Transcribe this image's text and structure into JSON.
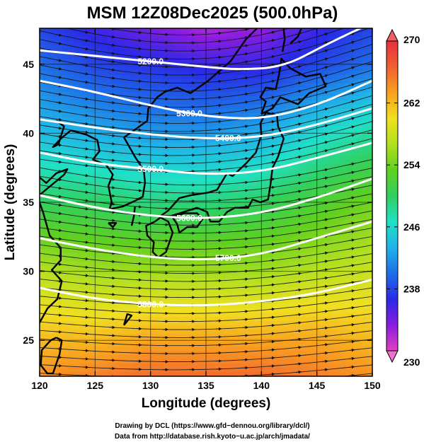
{
  "chart_data": {
    "type": "heatmap",
    "title": "MSM 12Z08Dec2025 (500.0hPa)",
    "xlabel": "Longitude (degrees)",
    "ylabel": "Latitude  (degrees)",
    "xlim": [
      120,
      150
    ],
    "ylim": [
      22.4,
      47.6
    ],
    "x_ticks": [
      120,
      125,
      130,
      135,
      140,
      145,
      150
    ],
    "y_ticks": [
      25,
      30,
      35,
      40,
      45
    ],
    "colorbar": {
      "min": 230,
      "max": 270,
      "ticks": [
        230,
        238,
        246,
        254,
        262,
        270
      ],
      "colors": [
        "#e040c0",
        "#8a1ce0",
        "#2a2ae6",
        "#1e6ee8",
        "#20b4e8",
        "#20e0c8",
        "#30d060",
        "#60d020",
        "#b0e020",
        "#f0e020",
        "#f8a020",
        "#f06030",
        "#e83040"
      ]
    },
    "temperature_field": {
      "lon": [
        120,
        125,
        130,
        135,
        140,
        145,
        150
      ],
      "lat": [
        47.6,
        45,
        40,
        35,
        30,
        25,
        22.4
      ],
      "values": [
        [
          238,
          236,
          234,
          232,
          233,
          236,
          238
        ],
        [
          240,
          238,
          237,
          236,
          236,
          238,
          240
        ],
        [
          244,
          243,
          242,
          242,
          243,
          246,
          248
        ],
        [
          250,
          250,
          249,
          249,
          250,
          252,
          254
        ],
        [
          257,
          256,
          256,
          256,
          256,
          257,
          258
        ],
        [
          262,
          262,
          263,
          263,
          263,
          263,
          262
        ],
        [
          264,
          265,
          266,
          266,
          266,
          265,
          264
        ]
      ]
    },
    "contours": [
      {
        "label": "5200.0",
        "lon": [
          120,
          125,
          130,
          135,
          138,
          142,
          146,
          150
        ],
        "lat": [
          46.0,
          45.6,
          45.2,
          44.8,
          44.6,
          44.8,
          46.5,
          48.0
        ]
      },
      {
        "label": "5300.0",
        "lon": [
          120,
          125,
          130,
          135,
          140,
          145,
          150
        ],
        "lat": [
          43.8,
          43.0,
          42.0,
          41.2,
          41.0,
          42.0,
          43.8
        ]
      },
      {
        "label": "5400.0",
        "lon": [
          120,
          125,
          130,
          135,
          140,
          145,
          150
        ],
        "lat": [
          41.0,
          40.4,
          39.9,
          39.6,
          39.7,
          40.6,
          41.8
        ]
      },
      {
        "label": "5500.0",
        "lon": [
          120,
          125,
          130,
          135,
          140,
          145,
          150
        ],
        "lat": [
          38.6,
          37.8,
          37.4,
          37.0,
          37.2,
          38.2,
          39.3
        ]
      },
      {
        "label": "5600.0",
        "lon": [
          120,
          125,
          130,
          135,
          140,
          145,
          150
        ],
        "lat": [
          35.5,
          34.6,
          34.0,
          33.8,
          34.2,
          35.3,
          36.7
        ]
      },
      {
        "label": "5700.0",
        "lon": [
          120,
          125,
          130,
          135,
          140,
          145,
          150
        ],
        "lat": [
          32.4,
          31.6,
          31.0,
          30.8,
          31.2,
          32.4,
          33.6
        ]
      },
      {
        "label": "5800.0",
        "lon": [
          120,
          125,
          130,
          135,
          140,
          145,
          150
        ],
        "lat": [
          28.8,
          28.0,
          27.6,
          27.5,
          27.8,
          28.4,
          29.4
        ]
      }
    ],
    "grid": true
  },
  "credits": {
    "line1": "Drawing by DCL (https://www.gfd−dennou.org/library/dcl/)",
    "line2": "Data from http://database.rish.kyoto−u.ac.jp/arch/jmadata/"
  }
}
